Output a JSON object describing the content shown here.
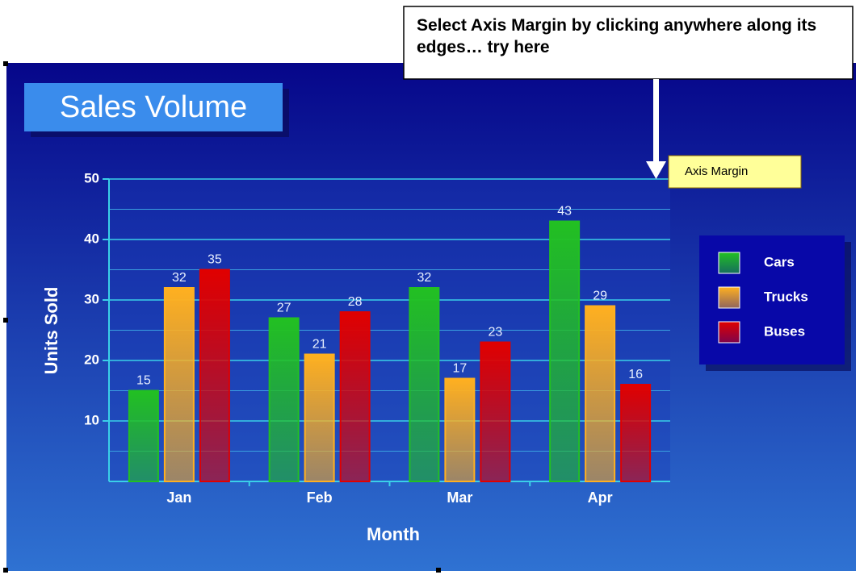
{
  "callout": "Select Axis Margin by clicking anywhere along its edges… try here",
  "axis_margin_label": "Axis Margin",
  "chart_data": {
    "type": "bar",
    "title": "Sales Volume",
    "x_label": "Month",
    "y_label": "Units Sold",
    "categories": [
      "Jan",
      "Feb",
      "Mar",
      "Apr"
    ],
    "series": [
      {
        "name": "Cars",
        "color": "#22c022",
        "values": [
          15,
          27,
          32,
          43
        ]
      },
      {
        "name": "Trucks",
        "color": "#ffb020",
        "values": [
          32,
          21,
          17,
          29
        ]
      },
      {
        "name": "Buses",
        "color": "#e00000",
        "values": [
          35,
          28,
          23,
          16
        ]
      }
    ],
    "ylim": [
      0,
      50
    ],
    "yticks": [
      10,
      20,
      30,
      40,
      50
    ],
    "minor_yticks": [
      5,
      15,
      25,
      35,
      45
    ],
    "grid": true,
    "legend": "right"
  }
}
